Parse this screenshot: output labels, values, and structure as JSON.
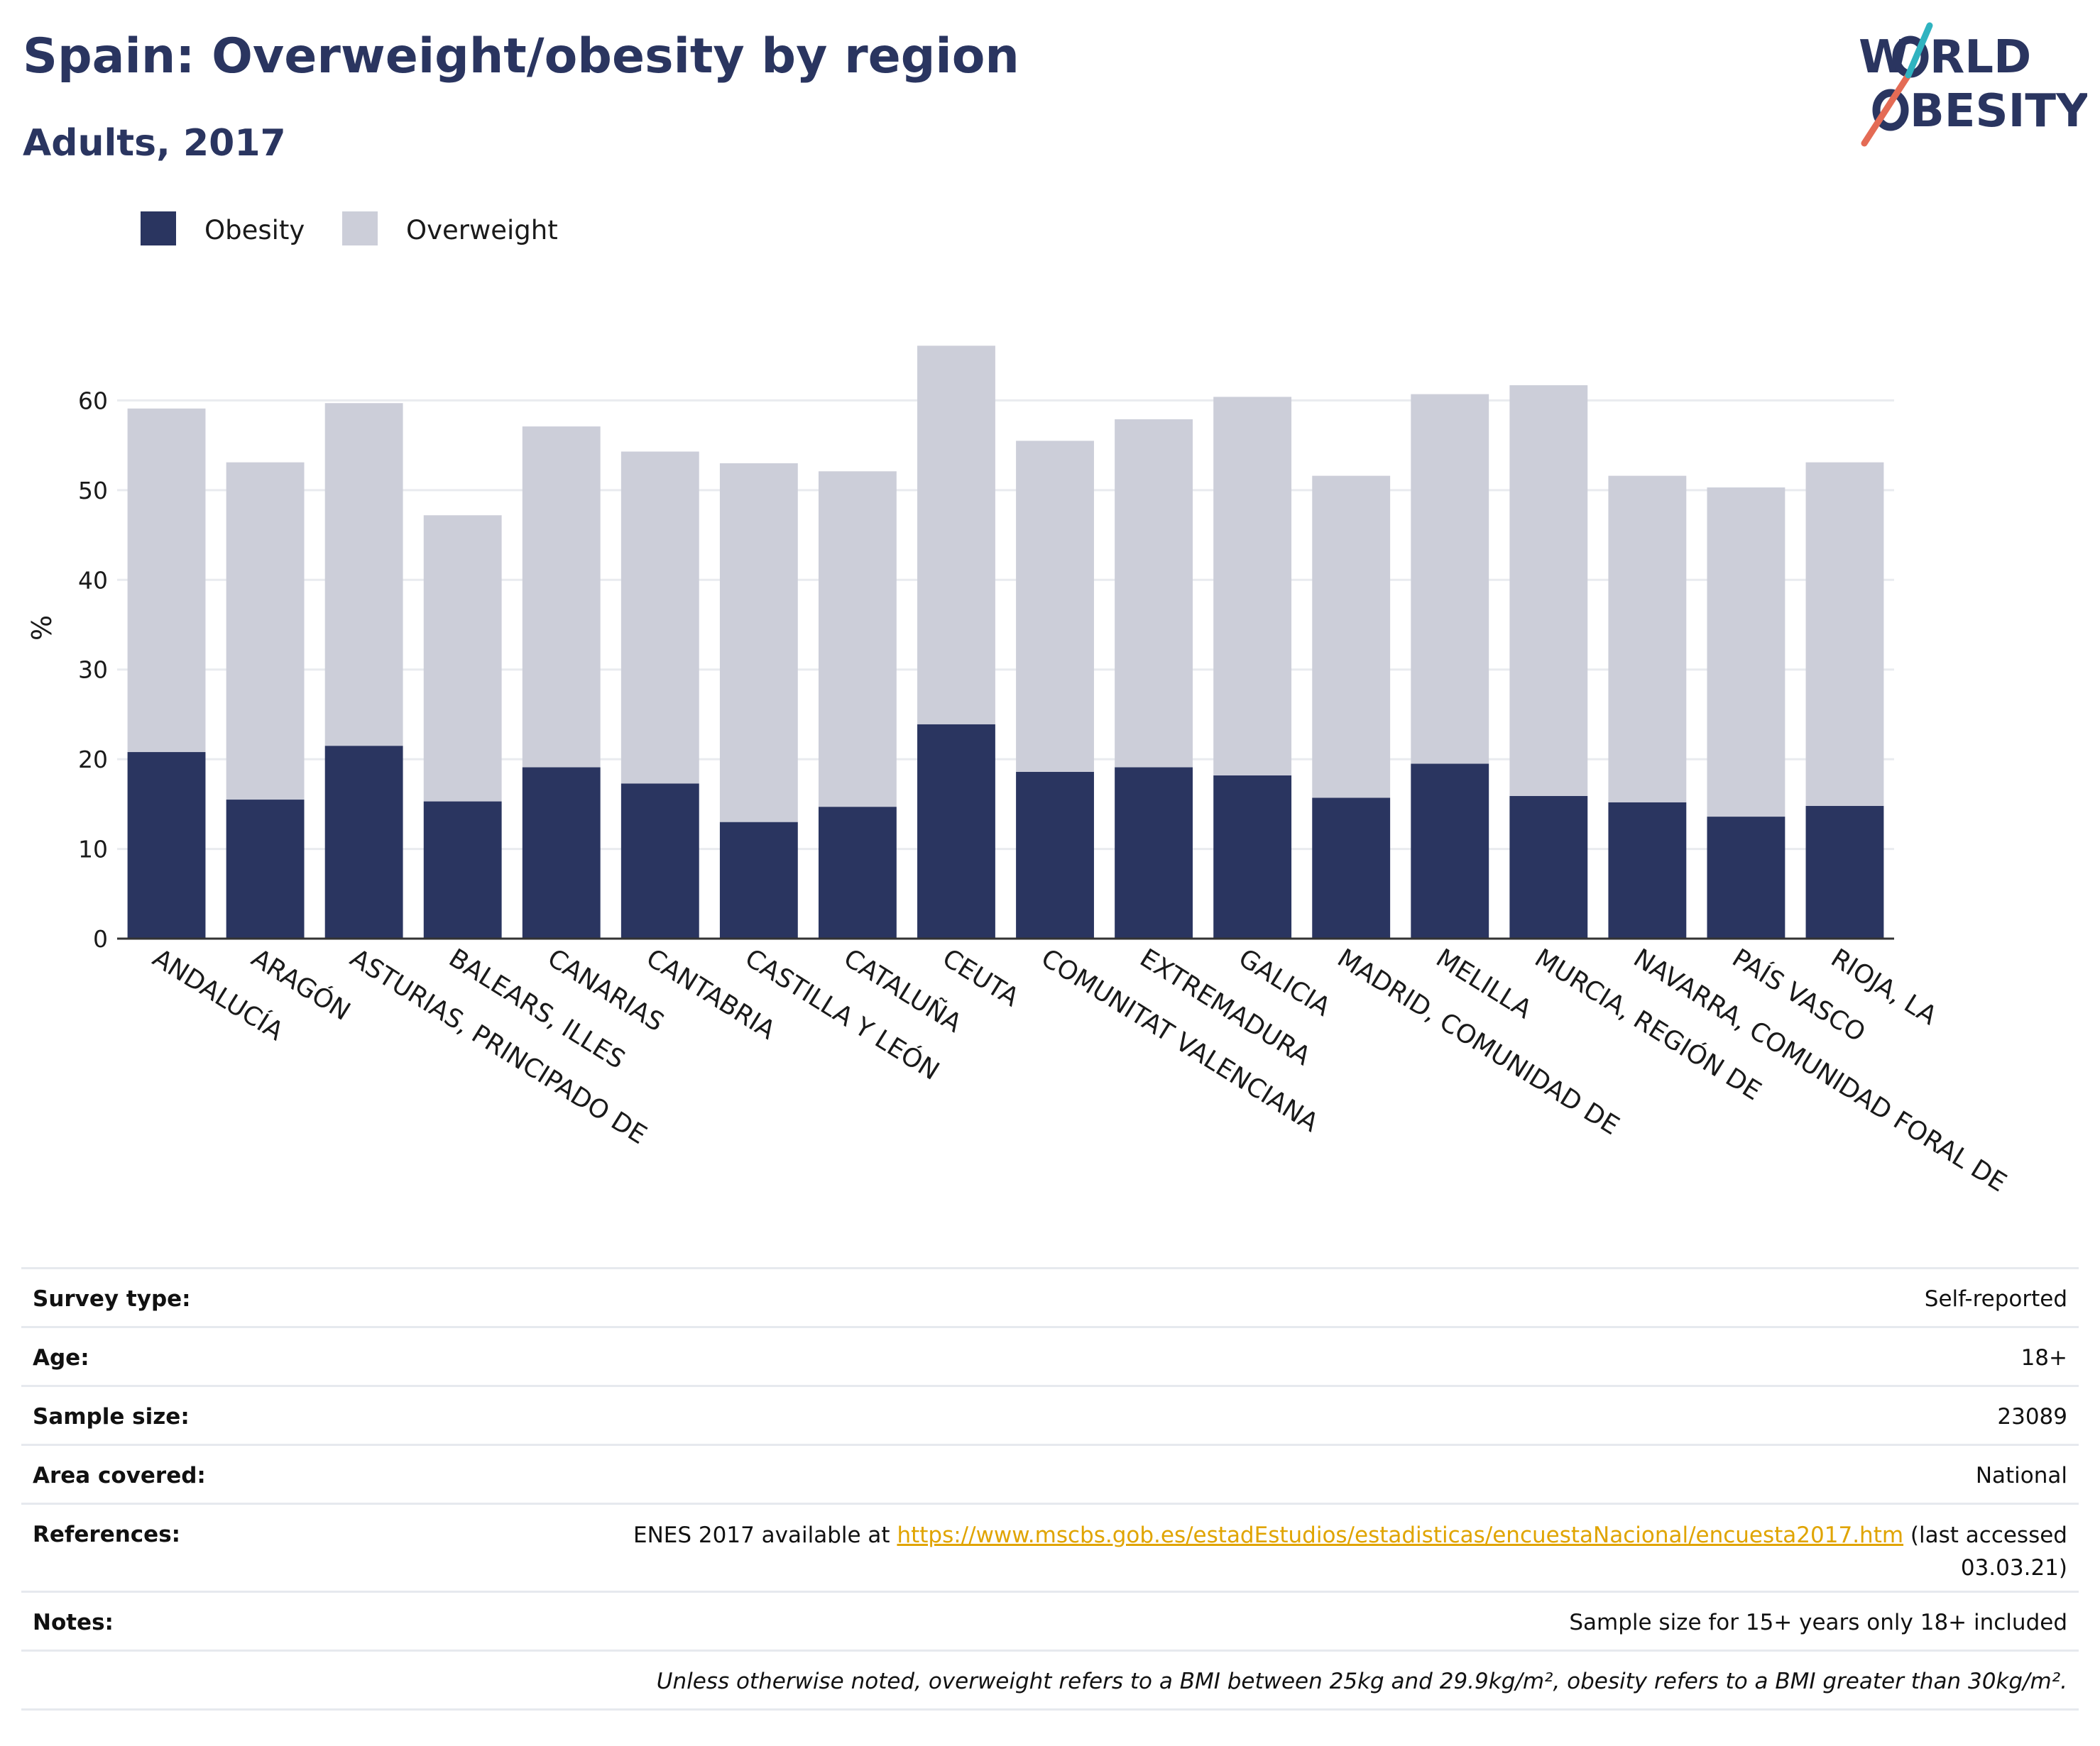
{
  "header": {
    "title": "Spain: Overweight/obesity by region",
    "subtitle": "Adults, 2017"
  },
  "logo": {
    "line1_a": "W",
    "line1_b": "RLD",
    "line2_a": "",
    "line2_b": "BESITY",
    "accent": "#e46b55",
    "accent2": "#2fb3c0"
  },
  "colors": {
    "obesity": "#2a3560",
    "overweight": "#ccced9",
    "axis": "#333333",
    "grid": "#e9ebef"
  },
  "chart_data": {
    "type": "bar",
    "stacked": true,
    "categories": [
      "ANDALUCÍA",
      "ARAGÓN",
      "ASTURIAS, PRINCIPADO DE",
      "BALEARS, ILLES",
      "CANARIAS",
      "CANTABRIA",
      "CASTILLA Y LEÓN",
      "CATALUÑA",
      "CEUTA",
      "COMUNITAT VALENCIANA",
      "EXTREMADURA",
      "GALICIA",
      "MADRID, COMUNIDAD DE",
      "MELILLA",
      "MURCIA, REGIÓN DE",
      "NAVARRA, COMUNIDAD FORAL DE",
      "PAÍS VASCO",
      "RIOJA, LA"
    ],
    "series": [
      {
        "name": "Obesity",
        "values": [
          20.8,
          15.5,
          21.5,
          15.3,
          19.1,
          17.3,
          13.0,
          14.7,
          23.9,
          18.6,
          19.1,
          18.2,
          15.7,
          19.5,
          15.9,
          15.2,
          13.6,
          14.8
        ]
      },
      {
        "name": "Overweight",
        "values": [
          38.3,
          37.6,
          38.2,
          31.9,
          38.0,
          37.0,
          40.0,
          37.4,
          42.2,
          36.9,
          38.8,
          42.2,
          35.9,
          41.2,
          45.8,
          36.4,
          36.7,
          38.3
        ]
      }
    ],
    "ylabel": "%",
    "xlabel": "",
    "ylim": [
      0,
      70
    ],
    "yticks": [
      0,
      10,
      20,
      30,
      40,
      50,
      60
    ],
    "grid": true,
    "legend": "top-left"
  },
  "info": {
    "rows": [
      {
        "key": "Survey type:",
        "value": "Self-reported"
      },
      {
        "key": "Age:",
        "value": "18+"
      },
      {
        "key": "Sample size:",
        "value": "23089"
      },
      {
        "key": "Area covered:",
        "value": "National"
      }
    ],
    "references": {
      "key": "References:",
      "prefix": "ENES 2017 available at ",
      "url": "https://www.mscbs.gob.es/estadEstudios/estadisticas/encuestaNacional/encuesta2017.htm",
      "suffix": " (last accessed",
      "date": "03.03.21)"
    },
    "notes": {
      "key": "Notes:",
      "value": "Sample size for 15+ years only 18+ included"
    },
    "footnote": "Unless otherwise noted, overweight refers to a BMI between 25kg and 29.9kg/m², obesity refers to a BMI greater than 30kg/m²."
  }
}
